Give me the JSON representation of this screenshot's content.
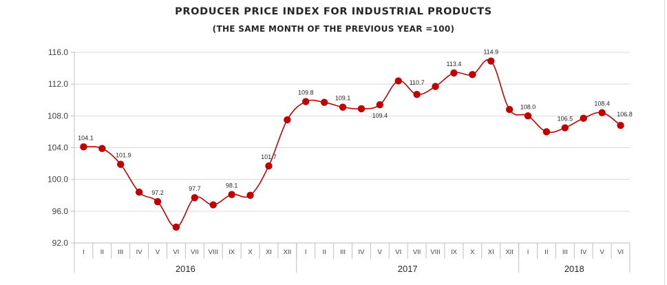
{
  "chart_data": {
    "type": "line",
    "title": "PRODUCER PRICE INDEX FOR INDUSTRIAL PRODUCTS",
    "subtitle": "(THE SAME MONTH OF THE PREVIOUS YEAR =100)",
    "xlabel": "",
    "ylabel": "",
    "ylim": [
      92.0,
      116.0
    ],
    "yticks": [
      "92.0",
      "96.0",
      "100.0",
      "104.0",
      "108.0",
      "112.0",
      "116.0"
    ],
    "grid": true,
    "legend": "none",
    "line_color": "#c00000",
    "marker_color": "#c00000",
    "years": [
      {
        "label": "2016",
        "months": 12
      },
      {
        "label": "2017",
        "months": 12
      },
      {
        "label": "2018",
        "months": 6
      }
    ],
    "categories": [
      "I",
      "II",
      "III",
      "IV",
      "V",
      "VI",
      "VII",
      "VIII",
      "IX",
      "X",
      "XI",
      "XII",
      "I",
      "II",
      "III",
      "IV",
      "V",
      "VI",
      "VII",
      "VIII",
      "IX",
      "X",
      "XI",
      "XII",
      "I",
      "II",
      "III",
      "IV",
      "V",
      "VI"
    ],
    "values": [
      104.1,
      103.9,
      101.9,
      98.4,
      97.2,
      94.0,
      97.7,
      96.8,
      98.1,
      98.0,
      101.7,
      107.5,
      109.8,
      109.7,
      109.1,
      108.9,
      109.4,
      112.4,
      110.7,
      111.7,
      113.4,
      113.2,
      114.9,
      108.8,
      108.0,
      106.0,
      106.5,
      107.7,
      108.4,
      106.8
    ],
    "data_labels": [
      "104.1",
      "",
      "101.9",
      "",
      "97.2",
      "",
      "97.7",
      "",
      "98.1",
      "",
      "101.7",
      "",
      "109.8",
      "",
      "109.1",
      "",
      "109.4",
      "",
      "110.7",
      "",
      "113.4",
      "",
      "114.9",
      "",
      "108.0",
      "",
      "106.5",
      "",
      "108.4",
      "106.8"
    ]
  }
}
